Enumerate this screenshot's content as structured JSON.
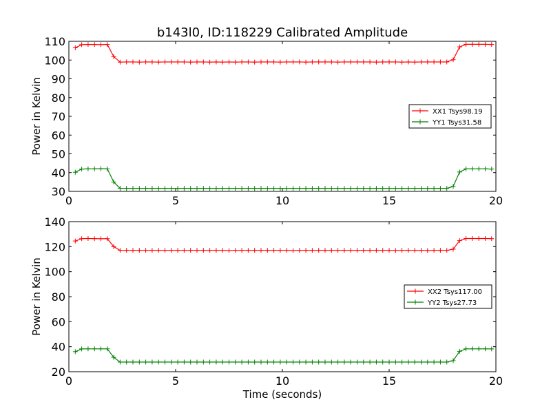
{
  "figure": {
    "title": "b143l0, ID:118229 Calibrated Amplitude",
    "xlabel": "Time (seconds)"
  },
  "chart_data": [
    {
      "type": "line",
      "title": "b143l0, ID:118229 Calibrated Amplitude",
      "xlabel": "",
      "ylabel": "Power in Kelvin",
      "xlim": [
        0,
        20
      ],
      "ylim": [
        30,
        110
      ],
      "xticks": [
        0,
        5,
        10,
        15,
        20
      ],
      "yticks": [
        30,
        40,
        50,
        60,
        70,
        80,
        90,
        100,
        110
      ],
      "legend_position": "right",
      "grid": false,
      "series": [
        {
          "name": "XX1 Tsys98.19",
          "color": "#ff0000",
          "marker": "plus",
          "x": [
            0.3,
            0.6,
            0.9,
            1.2,
            1.5,
            1.8,
            2.1,
            2.4,
            2.7,
            3.0,
            3.3,
            3.6,
            3.9,
            4.2,
            4.5,
            4.8,
            5.1,
            5.4,
            5.7,
            6.0,
            6.3,
            6.6,
            6.9,
            7.2,
            7.5,
            7.8,
            8.1,
            8.4,
            8.7,
            9.0,
            9.3,
            9.6,
            9.9,
            10.2,
            10.5,
            10.8,
            11.1,
            11.4,
            11.7,
            12.0,
            12.3,
            12.6,
            12.9,
            13.2,
            13.5,
            13.8,
            14.1,
            14.4,
            14.7,
            15.0,
            15.3,
            15.6,
            15.9,
            16.2,
            16.5,
            16.8,
            17.1,
            17.4,
            17.7,
            18.0,
            18.3,
            18.6,
            18.9,
            19.2,
            19.5,
            19.8
          ],
          "values": [
            106.5,
            108.2,
            108.3,
            108.3,
            108.2,
            108.3,
            101.8,
            98.9,
            99.0,
            99.0,
            98.9,
            99.0,
            99.0,
            98.9,
            99.0,
            99.0,
            99.0,
            99.0,
            98.9,
            99.0,
            99.0,
            98.9,
            99.0,
            98.9,
            99.0,
            98.9,
            99.0,
            99.0,
            98.9,
            99.0,
            99.0,
            99.0,
            98.9,
            99.0,
            99.0,
            99.0,
            98.9,
            99.0,
            99.0,
            99.0,
            99.0,
            98.9,
            99.0,
            99.0,
            99.0,
            99.0,
            99.0,
            98.9,
            99.0,
            99.0,
            99.0,
            98.9,
            99.0,
            98.9,
            99.0,
            99.0,
            99.0,
            99.0,
            99.0,
            100.2,
            107.0,
            108.4,
            108.4,
            108.4,
            108.4,
            108.3
          ]
        },
        {
          "name": "YY1 Tsys31.58",
          "color": "#008000",
          "marker": "plus",
          "x": [
            0.3,
            0.6,
            0.9,
            1.2,
            1.5,
            1.8,
            2.1,
            2.4,
            2.7,
            3.0,
            3.3,
            3.6,
            3.9,
            4.2,
            4.5,
            4.8,
            5.1,
            5.4,
            5.7,
            6.0,
            6.3,
            6.6,
            6.9,
            7.2,
            7.5,
            7.8,
            8.1,
            8.4,
            8.7,
            9.0,
            9.3,
            9.6,
            9.9,
            10.2,
            10.5,
            10.8,
            11.1,
            11.4,
            11.7,
            12.0,
            12.3,
            12.6,
            12.9,
            13.2,
            13.5,
            13.8,
            14.1,
            14.4,
            14.7,
            15.0,
            15.3,
            15.6,
            15.9,
            16.2,
            16.5,
            16.8,
            17.1,
            17.4,
            17.7,
            18.0,
            18.3,
            18.6,
            18.9,
            19.2,
            19.5,
            19.8
          ],
          "values": [
            40.2,
            41.9,
            42.0,
            42.0,
            42.1,
            42.0,
            35.0,
            31.6,
            31.6,
            31.6,
            31.6,
            31.6,
            31.6,
            31.6,
            31.6,
            31.6,
            31.6,
            31.6,
            31.6,
            31.6,
            31.6,
            31.6,
            31.6,
            31.6,
            31.6,
            31.6,
            31.6,
            31.6,
            31.6,
            31.6,
            31.6,
            31.6,
            31.6,
            31.6,
            31.6,
            31.6,
            31.6,
            31.6,
            31.6,
            31.6,
            31.6,
            31.6,
            31.6,
            31.6,
            31.6,
            31.6,
            31.6,
            31.6,
            31.6,
            31.6,
            31.6,
            31.6,
            31.6,
            31.6,
            31.6,
            31.6,
            31.6,
            31.6,
            31.6,
            32.6,
            40.3,
            42.0,
            42.0,
            42.0,
            42.0,
            41.9
          ]
        }
      ]
    },
    {
      "type": "line",
      "title": "",
      "xlabel": "Time (seconds)",
      "ylabel": "Power in Kelvin",
      "xlim": [
        0,
        20
      ],
      "ylim": [
        20,
        140
      ],
      "xticks": [
        0,
        5,
        10,
        15,
        20
      ],
      "yticks": [
        20,
        40,
        60,
        80,
        100,
        120,
        140
      ],
      "legend_position": "right",
      "grid": false,
      "series": [
        {
          "name": "XX2 Tsys117.00",
          "color": "#ff0000",
          "marker": "plus",
          "x": [
            0.3,
            0.6,
            0.9,
            1.2,
            1.5,
            1.8,
            2.1,
            2.4,
            2.7,
            3.0,
            3.3,
            3.6,
            3.9,
            4.2,
            4.5,
            4.8,
            5.1,
            5.4,
            5.7,
            6.0,
            6.3,
            6.6,
            6.9,
            7.2,
            7.5,
            7.8,
            8.1,
            8.4,
            8.7,
            9.0,
            9.3,
            9.6,
            9.9,
            10.2,
            10.5,
            10.8,
            11.1,
            11.4,
            11.7,
            12.0,
            12.3,
            12.6,
            12.9,
            13.2,
            13.5,
            13.8,
            14.1,
            14.4,
            14.7,
            15.0,
            15.3,
            15.6,
            15.9,
            16.2,
            16.5,
            16.8,
            17.1,
            17.4,
            17.7,
            18.0,
            18.3,
            18.6,
            18.9,
            19.2,
            19.5,
            19.8
          ],
          "values": [
            124.5,
            126.4,
            126.5,
            126.4,
            126.3,
            126.4,
            120.0,
            117.0,
            117.0,
            117.0,
            117.0,
            117.0,
            117.0,
            117.0,
            117.0,
            117.0,
            117.0,
            117.0,
            117.0,
            117.0,
            117.0,
            117.0,
            117.0,
            117.0,
            116.8,
            117.0,
            117.0,
            117.0,
            117.0,
            117.0,
            117.0,
            117.0,
            117.0,
            117.0,
            116.8,
            117.0,
            117.0,
            117.0,
            117.0,
            117.0,
            117.0,
            117.0,
            117.0,
            117.0,
            117.0,
            117.0,
            117.0,
            117.0,
            117.0,
            117.0,
            116.8,
            117.0,
            117.0,
            117.0,
            117.0,
            116.8,
            117.0,
            117.0,
            117.0,
            118.0,
            124.8,
            126.5,
            126.5,
            126.5,
            126.5,
            126.4
          ]
        },
        {
          "name": "YY2 Tsys27.73",
          "color": "#008000",
          "marker": "plus",
          "x": [
            0.3,
            0.6,
            0.9,
            1.2,
            1.5,
            1.8,
            2.1,
            2.4,
            2.7,
            3.0,
            3.3,
            3.6,
            3.9,
            4.2,
            4.5,
            4.8,
            5.1,
            5.4,
            5.7,
            6.0,
            6.3,
            6.6,
            6.9,
            7.2,
            7.5,
            7.8,
            8.1,
            8.4,
            8.7,
            9.0,
            9.3,
            9.6,
            9.9,
            10.2,
            10.5,
            10.8,
            11.1,
            11.4,
            11.7,
            12.0,
            12.3,
            12.6,
            12.9,
            13.2,
            13.5,
            13.8,
            14.1,
            14.4,
            14.7,
            15.0,
            15.3,
            15.6,
            15.9,
            16.2,
            16.5,
            16.8,
            17.1,
            17.4,
            17.7,
            18.0,
            18.3,
            18.6,
            18.9,
            19.2,
            19.5,
            19.8
          ],
          "values": [
            36.0,
            38.2,
            38.3,
            38.3,
            38.3,
            38.3,
            31.5,
            27.7,
            27.7,
            27.7,
            27.7,
            27.7,
            27.7,
            27.7,
            27.7,
            27.7,
            27.7,
            27.7,
            27.7,
            27.7,
            27.7,
            27.7,
            27.7,
            27.7,
            27.7,
            27.7,
            27.7,
            27.7,
            27.7,
            27.7,
            27.7,
            27.7,
            27.7,
            27.7,
            27.7,
            27.7,
            27.7,
            27.7,
            27.7,
            27.7,
            27.7,
            27.7,
            27.7,
            27.7,
            27.7,
            27.7,
            27.7,
            27.7,
            27.7,
            27.7,
            27.7,
            27.7,
            27.7,
            27.7,
            27.7,
            27.7,
            27.7,
            27.7,
            27.7,
            28.8,
            36.3,
            38.3,
            38.3,
            38.3,
            38.3,
            38.2
          ]
        }
      ]
    }
  ]
}
